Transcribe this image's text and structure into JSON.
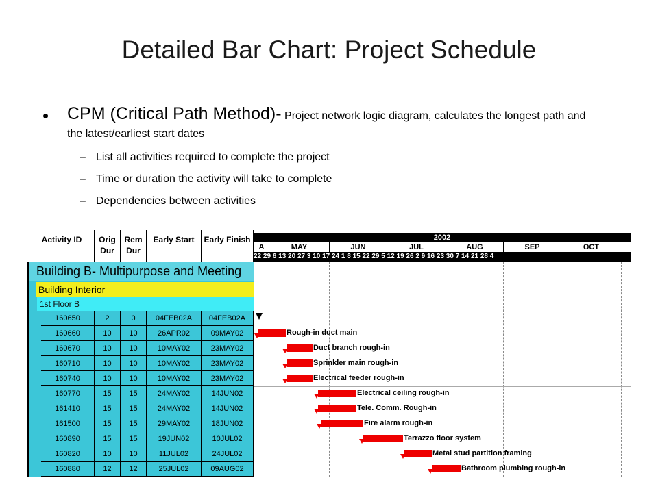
{
  "slide": {
    "title": "Detailed Bar Chart: Project Schedule",
    "bullet_lead": "CPM (Critical Path Method)-",
    "bullet_rest": " Project network logic diagram, calculates the longest path and the latest/earliest start dates",
    "subbullets": [
      "List all activities required to complete the project",
      "Time or duration the activity will take to complete",
      "Dependencies between activities"
    ]
  },
  "gantt": {
    "headers": [
      "Activity ID",
      "Orig Dur",
      "Rem Dur",
      "Early Start",
      "Early Finish"
    ],
    "year": "2002",
    "months": [
      "A",
      "MAY",
      "JUN",
      "JUL",
      "AUG",
      "SEP",
      "OCT"
    ],
    "days": "22 29 6  13 20 27 3  10 17 24 1  8  15 22 29 5  12 19 26 2  9  16 23 30 7  14 21 28 4",
    "group_building": "Building B- Multipurpose and Meeting",
    "group_interior": "Building Interior",
    "group_floor": "1st Floor B",
    "rows": [
      {
        "id": "160650",
        "orig": "2",
        "rem": "0",
        "start": "04FEB02A",
        "finish": "04FEB02A",
        "label": ""
      },
      {
        "id": "160660",
        "orig": "10",
        "rem": "10",
        "start": "26APR02",
        "finish": "09MAY02",
        "label": "Rough-in duct main"
      },
      {
        "id": "160670",
        "orig": "10",
        "rem": "10",
        "start": "10MAY02",
        "finish": "23MAY02",
        "label": "Duct branch rough-in"
      },
      {
        "id": "160710",
        "orig": "10",
        "rem": "10",
        "start": "10MAY02",
        "finish": "23MAY02",
        "label": "Sprinkler main rough-in"
      },
      {
        "id": "160740",
        "orig": "10",
        "rem": "10",
        "start": "10MAY02",
        "finish": "23MAY02",
        "label": "Electrical feeder rough-in"
      },
      {
        "id": "160770",
        "orig": "15",
        "rem": "15",
        "start": "24MAY02",
        "finish": "14JUN02",
        "label": "Electrical ceiling rough-in"
      },
      {
        "id": "161410",
        "orig": "15",
        "rem": "15",
        "start": "24MAY02",
        "finish": "14JUN02",
        "label": "Tele. Comm. Rough-in"
      },
      {
        "id": "161500",
        "orig": "15",
        "rem": "15",
        "start": "29MAY02",
        "finish": "18JUN02",
        "label": "Fire alarm rough-in"
      },
      {
        "id": "160890",
        "orig": "15",
        "rem": "15",
        "start": "19JUN02",
        "finish": "10JUL02",
        "label": "Terrazzo floor system"
      },
      {
        "id": "160820",
        "orig": "10",
        "rem": "10",
        "start": "11JUL02",
        "finish": "24JUL02",
        "label": "Metal stud partition framing"
      },
      {
        "id": "160880",
        "orig": "12",
        "rem": "12",
        "start": "25JUL02",
        "finish": "09AUG02",
        "label": "Bathroom plumbing rough-in"
      }
    ]
  },
  "colors": {
    "bar": "#ee0000",
    "building_group": "#5fd4e2",
    "interior_group": "#f3ee1d",
    "floor_group": "#40ecf6"
  }
}
